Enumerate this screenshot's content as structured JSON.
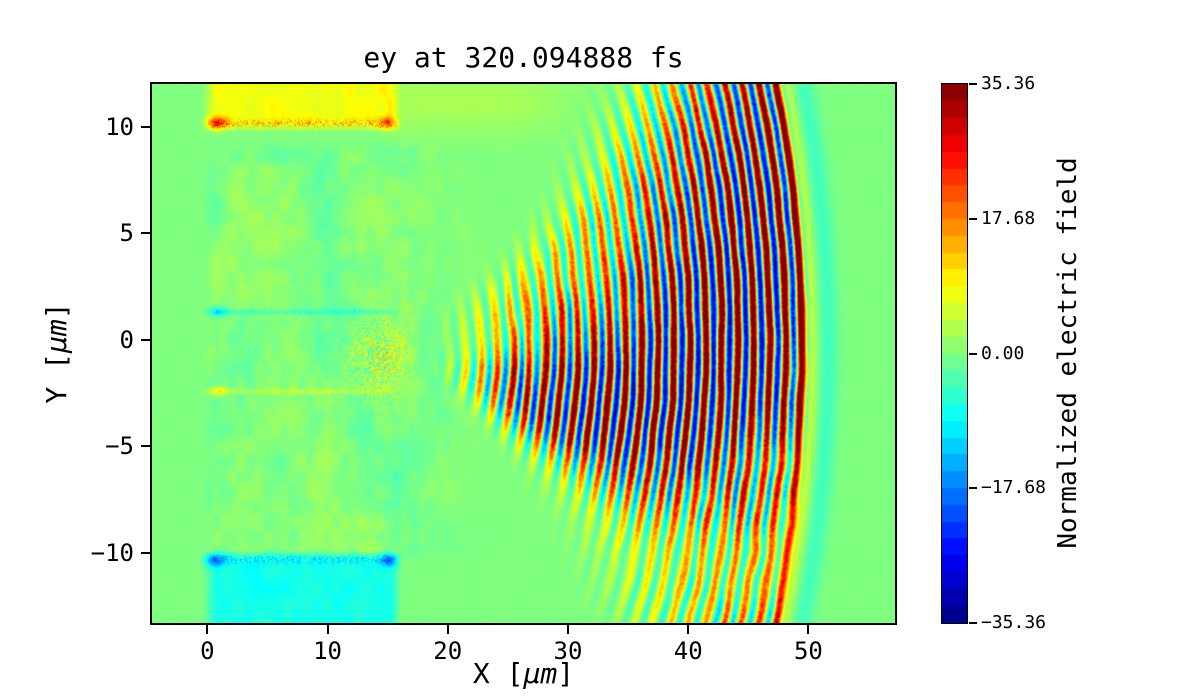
{
  "chart_data": {
    "type": "heatmap",
    "title": "ey at 320.094888 fs",
    "xlabel": "X [μm]",
    "ylabel": "Y [μm]",
    "xlabel_parts": {
      "prefix": "X [",
      "unit": "μm",
      "suffix": "]"
    },
    "ylabel_parts": {
      "prefix": "Y [",
      "unit": "μm",
      "suffix": "]"
    },
    "colorbar_label": "Normalized electric field",
    "colormap": "jet",
    "colorbar_levels": 32,
    "clim": [
      -35.36,
      35.36
    ],
    "colorbar_tick_values": [
      35.36,
      17.68,
      0,
      -17.68,
      -35.36
    ],
    "colorbar_tick_labels": [
      "35.36",
      "17.68",
      "0.00",
      "−17.68",
      "−35.36"
    ],
    "x_tick_values": [
      0,
      10,
      20,
      30,
      40,
      50
    ],
    "x_tick_labels": [
      "0",
      "10",
      "20",
      "30",
      "40",
      "50"
    ],
    "y_tick_values": [
      10,
      5,
      0,
      -5,
      -10
    ],
    "y_tick_labels": [
      "10",
      "5",
      "0",
      "−5",
      "−10"
    ],
    "xlim": [
      -4.6,
      57.2
    ],
    "ylim": [
      -13.3,
      12.0
    ],
    "field_model": {
      "background_value": 0,
      "channel": {
        "x_start": 0,
        "x_end": 15.6,
        "center_y": -0.55,
        "half_height": 9.6,
        "noise_amp": 2.2,
        "line_top": {
          "y": 1.3,
          "amp": -6.5
        },
        "line_bottom": {
          "y": -2.42,
          "amp": 5.5
        },
        "exit_blob": {
          "x": 14.3,
          "y": -0.8,
          "amp": 11
        }
      },
      "top_slab": {
        "y_edge": 10.12,
        "value": 8.2,
        "edge_speckle_amp": 15
      },
      "bottom_slab": {
        "y_edge": -10.3,
        "value": -7.3,
        "edge_speckle_amp": -10
      },
      "pulse": {
        "center": [
          13,
          -0.5
        ],
        "wavelength": 1.34,
        "center2": [
          16.5,
          0.6
        ],
        "wavelength2": 1.3,
        "second_amp": 0.45,
        "bias": 0.26,
        "amplitude": 26,
        "r_inner": 5,
        "r_full": 14.5,
        "r_outer": 37.5,
        "rim_amp": 8.5,
        "rim_r": 36.7
      }
    }
  }
}
